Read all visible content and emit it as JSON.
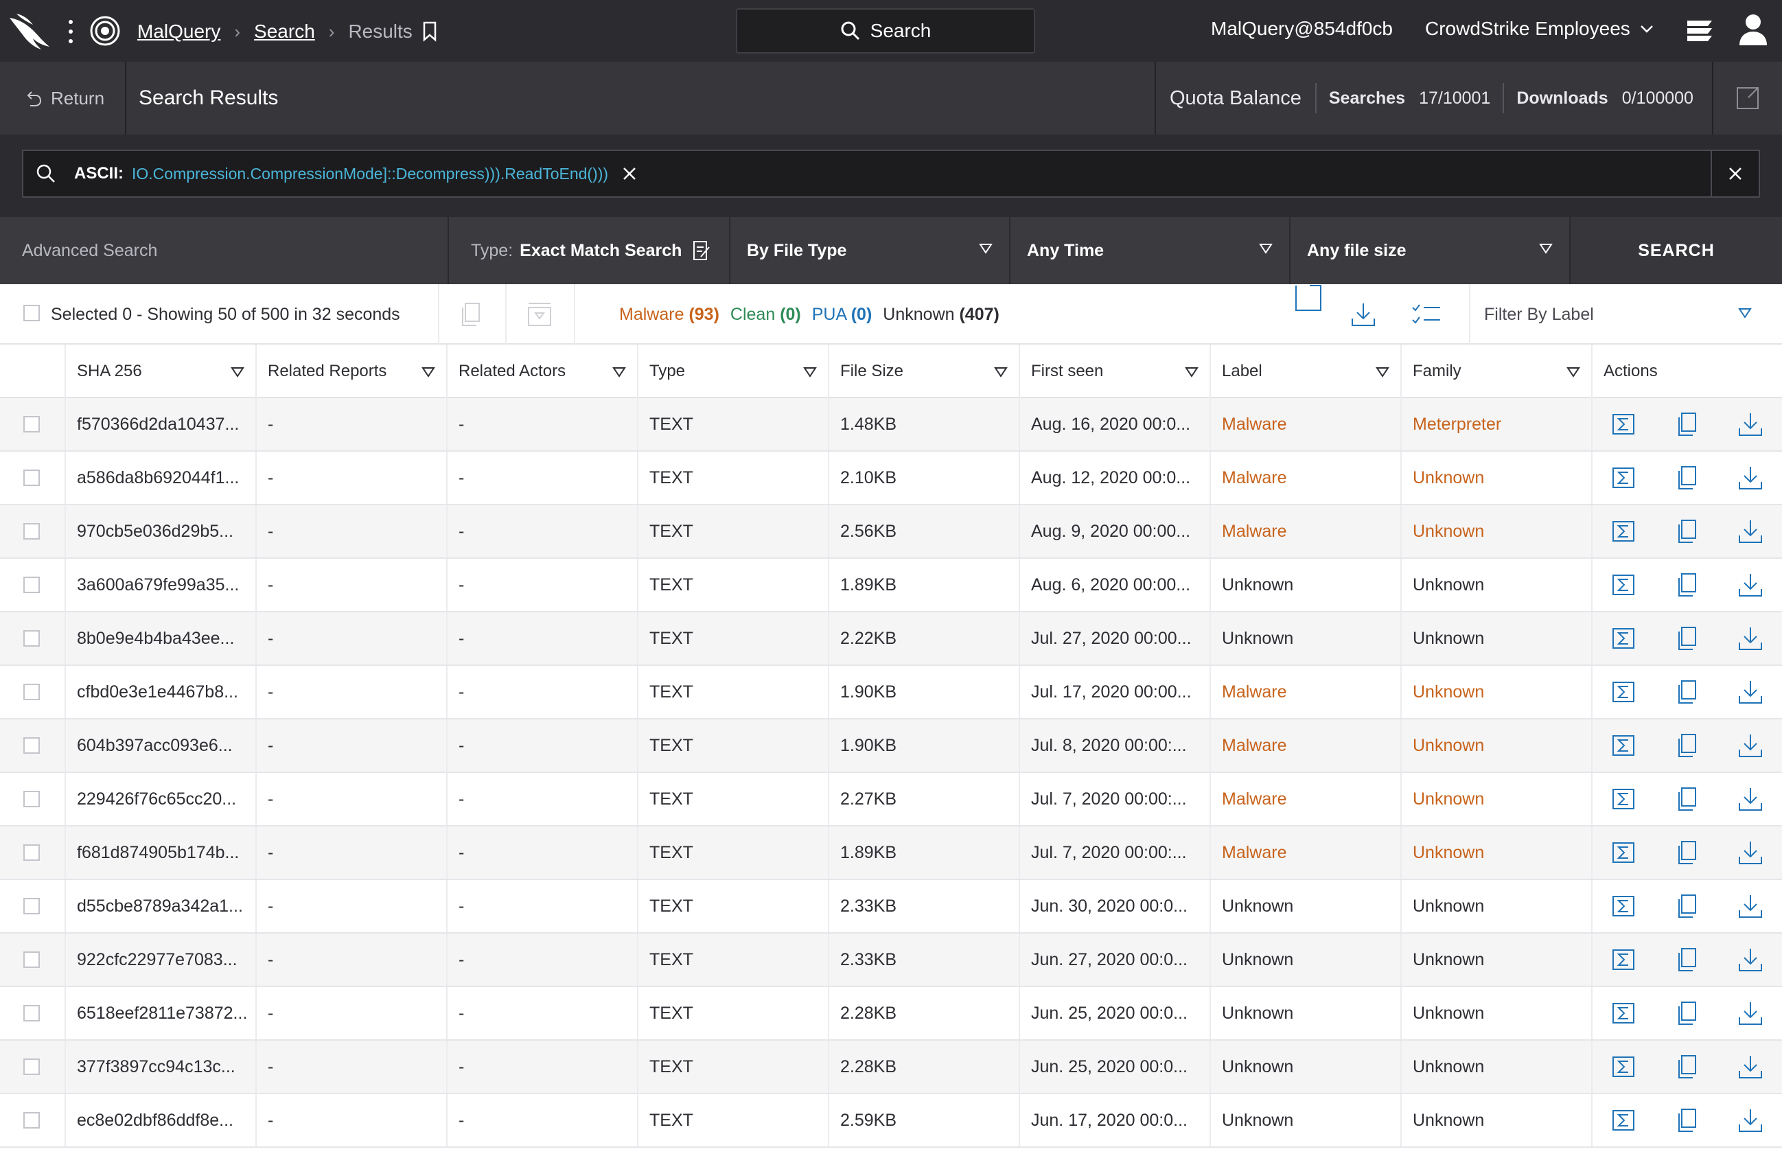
{
  "topbar": {
    "breadcrumb_app": "MalQuery",
    "breadcrumb_search": "Search",
    "breadcrumb_current": "Results",
    "search_label": "Search",
    "user": "MalQuery@854df0cb",
    "org": "CrowdStrike Employees"
  },
  "subheader": {
    "return_label": "Return",
    "title": "Search Results",
    "quota_label": "Quota Balance",
    "searches_label": "Searches",
    "searches_value": "17/10001",
    "downloads_label": "Downloads",
    "downloads_value": "0/100000"
  },
  "query": {
    "prefix": "ASCII:",
    "text": "IO.Compression.CompressionMode]::Decompress))).ReadToEnd()))"
  },
  "filters": {
    "advanced_label": "Advanced Search",
    "type_label": "Type:",
    "type_value": "Exact Match Search",
    "file_type": "By File Type",
    "time": "Any Time",
    "size": "Any file size",
    "search_button": "SEARCH"
  },
  "toolbar": {
    "selection_text": "Selected 0 - Showing 50 of 500 in 32 seconds",
    "malware_label": "Malware",
    "malware_count": "(93)",
    "clean_label": "Clean",
    "clean_count": "(0)",
    "pua_label": "PUA",
    "pua_count": "(0)",
    "unknown_label": "Unknown",
    "unknown_count": "(407)",
    "filter_by_label": "Filter By Label"
  },
  "table": {
    "headers": {
      "sha": "SHA 256",
      "reports": "Related Reports",
      "actors": "Related Actors",
      "type": "Type",
      "size": "File Size",
      "first_seen": "First seen",
      "label": "Label",
      "family": "Family",
      "actions": "Actions"
    },
    "rows": [
      {
        "sha": "f570366d2da10437...",
        "reports": "-",
        "actors": "-",
        "type": "TEXT",
        "size": "1.48KB",
        "first_seen": "Aug. 16, 2020 00:0...",
        "label": "Malware",
        "family": "Meterpreter"
      },
      {
        "sha": "a586da8b692044f1...",
        "reports": "-",
        "actors": "-",
        "type": "TEXT",
        "size": "2.10KB",
        "first_seen": "Aug. 12, 2020 00:0...",
        "label": "Malware",
        "family": "Unknown"
      },
      {
        "sha": "970cb5e036d29b5...",
        "reports": "-",
        "actors": "-",
        "type": "TEXT",
        "size": "2.56KB",
        "first_seen": "Aug. 9, 2020 00:00...",
        "label": "Malware",
        "family": "Unknown"
      },
      {
        "sha": "3a600a679fe99a35...",
        "reports": "-",
        "actors": "-",
        "type": "TEXT",
        "size": "1.89KB",
        "first_seen": "Aug. 6, 2020 00:00...",
        "label": "Unknown",
        "family": "Unknown"
      },
      {
        "sha": "8b0e9e4b4ba43ee...",
        "reports": "-",
        "actors": "-",
        "type": "TEXT",
        "size": "2.22KB",
        "first_seen": "Jul. 27, 2020 00:00...",
        "label": "Unknown",
        "family": "Unknown"
      },
      {
        "sha": "cfbd0e3e1e4467b8...",
        "reports": "-",
        "actors": "-",
        "type": "TEXT",
        "size": "1.90KB",
        "first_seen": "Jul. 17, 2020 00:00...",
        "label": "Malware",
        "family": "Unknown"
      },
      {
        "sha": "604b397acc093e6...",
        "reports": "-",
        "actors": "-",
        "type": "TEXT",
        "size": "1.90KB",
        "first_seen": "Jul. 8, 2020 00:00:...",
        "label": "Malware",
        "family": "Unknown"
      },
      {
        "sha": "229426f76c65cc20...",
        "reports": "-",
        "actors": "-",
        "type": "TEXT",
        "size": "2.27KB",
        "first_seen": "Jul. 7, 2020 00:00:...",
        "label": "Malware",
        "family": "Unknown"
      },
      {
        "sha": "f681d874905b174b...",
        "reports": "-",
        "actors": "-",
        "type": "TEXT",
        "size": "1.89KB",
        "first_seen": "Jul. 7, 2020 00:00:...",
        "label": "Malware",
        "family": "Unknown"
      },
      {
        "sha": "d55cbe8789a342a1...",
        "reports": "-",
        "actors": "-",
        "type": "TEXT",
        "size": "2.33KB",
        "first_seen": "Jun. 30, 2020 00:0...",
        "label": "Unknown",
        "family": "Unknown"
      },
      {
        "sha": "922cfc22977e7083...",
        "reports": "-",
        "actors": "-",
        "type": "TEXT",
        "size": "2.33KB",
        "first_seen": "Jun. 27, 2020 00:0...",
        "label": "Unknown",
        "family": "Unknown"
      },
      {
        "sha": "6518eef2811e73872...",
        "reports": "-",
        "actors": "-",
        "type": "TEXT",
        "size": "2.28KB",
        "first_seen": "Jun. 25, 2020 00:0...",
        "label": "Unknown",
        "family": "Unknown"
      },
      {
        "sha": "377f3897cc94c13c...",
        "reports": "-",
        "actors": "-",
        "type": "TEXT",
        "size": "2.28KB",
        "first_seen": "Jun. 25, 2020 00:0...",
        "label": "Unknown",
        "family": "Unknown"
      },
      {
        "sha": "ec8e02dbf86ddf8e...",
        "reports": "-",
        "actors": "-",
        "type": "TEXT",
        "size": "2.59KB",
        "first_seen": "Jun. 17, 2020 00:0...",
        "label": "Unknown",
        "family": "Unknown"
      }
    ]
  },
  "colors": {
    "malware": "#c8631b",
    "clean": "#2e8b57",
    "pua": "#1f73b7",
    "query_text": "#4bb6d8",
    "action_icon": "#1f73b7"
  }
}
